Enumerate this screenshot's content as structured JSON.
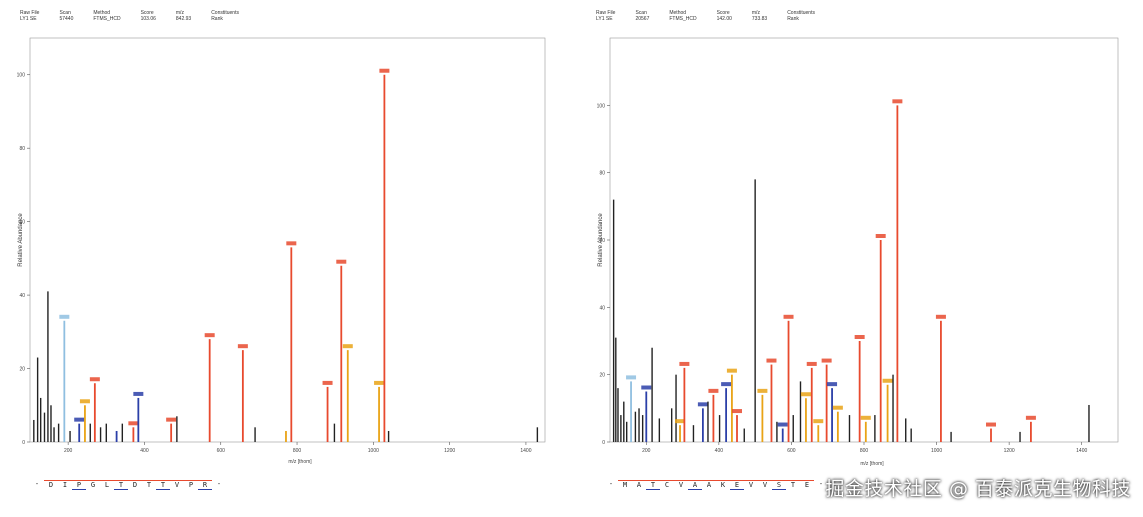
{
  "panels": [
    {
      "header": [
        {
          "label": "Raw File",
          "value": "LY1 SE"
        },
        {
          "label": "Scan",
          "value": "57440"
        },
        {
          "label": "Method",
          "value": "FTMS_HCD"
        },
        {
          "label": "Score",
          "value": "103.06"
        },
        {
          "label": "m/z",
          "value": "842.93"
        },
        {
          "label": "Constituents",
          "value": "Rank"
        }
      ],
      "ylabel": "Relative Abundance",
      "xlabel": "m/z [thom]",
      "sequence": [
        "-",
        "D",
        "I",
        "P",
        "G",
        "L",
        "T",
        "D",
        "T",
        "T",
        "V",
        "P",
        "R",
        "-"
      ]
    },
    {
      "header": [
        {
          "label": "Raw File",
          "value": "LY1 SE"
        },
        {
          "label": "Scan",
          "value": "20567"
        },
        {
          "label": "Method",
          "value": "FTMS_HCD"
        },
        {
          "label": "Score",
          "value": "142.00"
        },
        {
          "label": "m/z",
          "value": "733.83"
        },
        {
          "label": "Constituents",
          "value": "Rank"
        }
      ],
      "ylabel": "Relative Abundance",
      "xlabel": "m/z [thom]",
      "sequence": [
        "-",
        "M",
        "A",
        "T",
        "C",
        "V",
        "A",
        "A",
        "K",
        "E",
        "V",
        "V",
        "S",
        "T",
        "E",
        "-"
      ]
    }
  ],
  "chart_data": [
    {
      "type": "bar",
      "xlabel": "m/z [thom]",
      "ylabel": "Relative Abundance",
      "xlim": [
        100,
        1450
      ],
      "ylim": [
        0,
        110
      ],
      "xticks": [
        200,
        400,
        600,
        800,
        1000,
        1200,
        1400
      ],
      "yticks": [
        0,
        20,
        40,
        60,
        80,
        100
      ],
      "colors": {
        "unassigned": "#222222",
        "y_ion": "#e84a2e",
        "b_ion": "#2b3fa8",
        "internal": "#e9a316",
        "precursor": "#8fbfe0"
      },
      "peaks": [
        {
          "x": 110,
          "y": 6,
          "ion": "unassigned"
        },
        {
          "x": 120,
          "y": 23,
          "ion": "unassigned"
        },
        {
          "x": 128,
          "y": 12,
          "ion": "unassigned"
        },
        {
          "x": 138,
          "y": 8,
          "ion": "unassigned"
        },
        {
          "x": 147,
          "y": 41,
          "ion": "unassigned"
        },
        {
          "x": 155,
          "y": 10,
          "ion": "unassigned"
        },
        {
          "x": 163,
          "y": 4,
          "ion": "unassigned"
        },
        {
          "x": 175,
          "y": 5,
          "ion": "unassigned"
        },
        {
          "x": 190,
          "y": 33,
          "ion": "precursor"
        },
        {
          "x": 205,
          "y": 3,
          "ion": "unassigned"
        },
        {
          "x": 229,
          "y": 5,
          "ion": "b_ion"
        },
        {
          "x": 244,
          "y": 10,
          "ion": "internal"
        },
        {
          "x": 258,
          "y": 5,
          "ion": "unassigned"
        },
        {
          "x": 270,
          "y": 16,
          "ion": "y_ion"
        },
        {
          "x": 285,
          "y": 4,
          "ion": "unassigned"
        },
        {
          "x": 300,
          "y": 5,
          "ion": "unassigned"
        },
        {
          "x": 327,
          "y": 3,
          "ion": "b_ion"
        },
        {
          "x": 342,
          "y": 5,
          "ion": "unassigned"
        },
        {
          "x": 371,
          "y": 4,
          "ion": "y_ion"
        },
        {
          "x": 384,
          "y": 12,
          "ion": "b_ion"
        },
        {
          "x": 470,
          "y": 5,
          "ion": "y_ion"
        },
        {
          "x": 485,
          "y": 7,
          "ion": "unassigned"
        },
        {
          "x": 571,
          "y": 28,
          "ion": "y_ion"
        },
        {
          "x": 658,
          "y": 25,
          "ion": "y_ion"
        },
        {
          "x": 690,
          "y": 4,
          "ion": "unassigned"
        },
        {
          "x": 771,
          "y": 3,
          "ion": "internal"
        },
        {
          "x": 785,
          "y": 53,
          "ion": "y_ion"
        },
        {
          "x": 880,
          "y": 15,
          "ion": "y_ion"
        },
        {
          "x": 898,
          "y": 5,
          "ion": "unassigned"
        },
        {
          "x": 916,
          "y": 48,
          "ion": "y_ion"
        },
        {
          "x": 933,
          "y": 25,
          "ion": "internal"
        },
        {
          "x": 1015,
          "y": 15,
          "ion": "internal"
        },
        {
          "x": 1029,
          "y": 100,
          "ion": "y_ion"
        },
        {
          "x": 1040,
          "y": 3,
          "ion": "unassigned"
        },
        {
          "x": 1430,
          "y": 4,
          "ion": "unassigned"
        }
      ]
    },
    {
      "type": "bar",
      "xlabel": "m/z [thom]",
      "ylabel": "Relative Abundance",
      "xlim": [
        100,
        1500
      ],
      "ylim": [
        0,
        120
      ],
      "xticks": [
        200,
        400,
        600,
        800,
        1000,
        1200,
        1400
      ],
      "yticks": [
        0,
        20,
        40,
        60,
        80,
        100
      ],
      "colors": {
        "unassigned": "#222222",
        "y_ion": "#e84a2e",
        "b_ion": "#2b3fa8",
        "internal": "#e9a316",
        "precursor": "#8fbfe0"
      },
      "peaks": [
        {
          "x": 110,
          "y": 72,
          "ion": "unassigned"
        },
        {
          "x": 116,
          "y": 31,
          "ion": "unassigned"
        },
        {
          "x": 122,
          "y": 16,
          "ion": "unassigned"
        },
        {
          "x": 130,
          "y": 8,
          "ion": "unassigned"
        },
        {
          "x": 138,
          "y": 12,
          "ion": "unassigned"
        },
        {
          "x": 146,
          "y": 6,
          "ion": "unassigned"
        },
        {
          "x": 158,
          "y": 18,
          "ion": "precursor"
        },
        {
          "x": 170,
          "y": 9,
          "ion": "unassigned"
        },
        {
          "x": 180,
          "y": 10,
          "ion": "unassigned"
        },
        {
          "x": 190,
          "y": 8,
          "ion": "unassigned"
        },
        {
          "x": 200,
          "y": 15,
          "ion": "b_ion"
        },
        {
          "x": 216,
          "y": 28,
          "ion": "unassigned"
        },
        {
          "x": 236,
          "y": 7,
          "ion": "unassigned"
        },
        {
          "x": 270,
          "y": 10,
          "ion": "unassigned"
        },
        {
          "x": 282,
          "y": 20,
          "ion": "unassigned"
        },
        {
          "x": 293,
          "y": 5,
          "ion": "internal"
        },
        {
          "x": 305,
          "y": 22,
          "ion": "y_ion"
        },
        {
          "x": 330,
          "y": 5,
          "ion": "unassigned"
        },
        {
          "x": 356,
          "y": 10,
          "ion": "b_ion"
        },
        {
          "x": 370,
          "y": 12,
          "ion": "unassigned"
        },
        {
          "x": 385,
          "y": 14,
          "ion": "y_ion"
        },
        {
          "x": 402,
          "y": 8,
          "ion": "unassigned"
        },
        {
          "x": 420,
          "y": 16,
          "ion": "b_ion"
        },
        {
          "x": 436,
          "y": 20,
          "ion": "internal"
        },
        {
          "x": 450,
          "y": 8,
          "ion": "y_ion"
        },
        {
          "x": 470,
          "y": 4,
          "ion": "unassigned"
        },
        {
          "x": 500,
          "y": 78,
          "ion": "unassigned"
        },
        {
          "x": 520,
          "y": 14,
          "ion": "internal"
        },
        {
          "x": 545,
          "y": 23,
          "ion": "y_ion"
        },
        {
          "x": 560,
          "y": 6,
          "ion": "unassigned"
        },
        {
          "x": 576,
          "y": 4,
          "ion": "b_ion"
        },
        {
          "x": 592,
          "y": 36,
          "ion": "y_ion"
        },
        {
          "x": 605,
          "y": 8,
          "ion": "unassigned"
        },
        {
          "x": 625,
          "y": 18,
          "ion": "unassigned"
        },
        {
          "x": 640,
          "y": 13,
          "ion": "internal"
        },
        {
          "x": 656,
          "y": 22,
          "ion": "y_ion"
        },
        {
          "x": 674,
          "y": 5,
          "ion": "internal"
        },
        {
          "x": 697,
          "y": 23,
          "ion": "y_ion"
        },
        {
          "x": 712,
          "y": 16,
          "ion": "b_ion"
        },
        {
          "x": 728,
          "y": 9,
          "ion": "internal"
        },
        {
          "x": 760,
          "y": 8,
          "ion": "unassigned"
        },
        {
          "x": 788,
          "y": 30,
          "ion": "y_ion"
        },
        {
          "x": 805,
          "y": 6,
          "ion": "internal"
        },
        {
          "x": 830,
          "y": 8,
          "ion": "unassigned"
        },
        {
          "x": 846,
          "y": 60,
          "ion": "y_ion"
        },
        {
          "x": 865,
          "y": 17,
          "ion": "internal"
        },
        {
          "x": 880,
          "y": 20,
          "ion": "unassigned"
        },
        {
          "x": 892,
          "y": 100,
          "ion": "y_ion"
        },
        {
          "x": 915,
          "y": 7,
          "ion": "unassigned"
        },
        {
          "x": 930,
          "y": 4,
          "ion": "unassigned"
        },
        {
          "x": 1012,
          "y": 36,
          "ion": "y_ion"
        },
        {
          "x": 1040,
          "y": 3,
          "ion": "unassigned"
        },
        {
          "x": 1150,
          "y": 4,
          "ion": "y_ion"
        },
        {
          "x": 1230,
          "y": 3,
          "ion": "unassigned"
        },
        {
          "x": 1260,
          "y": 6,
          "ion": "y_ion"
        },
        {
          "x": 1420,
          "y": 11,
          "ion": "unassigned"
        }
      ]
    }
  ],
  "watermark": "掘金技术社区 @ 百泰派克生物科技"
}
